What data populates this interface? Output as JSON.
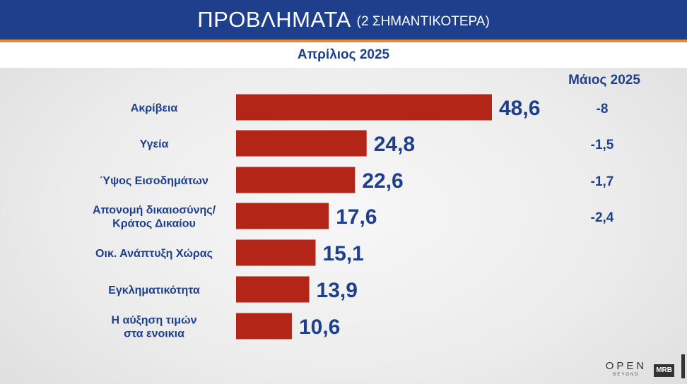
{
  "header": {
    "title": "ΠΡΟΒΛΗΜΑΤΑ",
    "subtitle": "(2 ΣΗΜΑΝΤΙΚΟΤΕΡΑ)",
    "period": "Απρίλιος 2025",
    "compare_label": "Μάιος 2025"
  },
  "logos": {
    "open": "OPEN",
    "open_sub": "BEYOND",
    "mrb": "MRB"
  },
  "colors": {
    "bar": "#b22517",
    "text": "#1d3f8c",
    "header_bg": "#1d3f8c",
    "accent": "#e8893a"
  },
  "chart_data": {
    "type": "bar",
    "orientation": "horizontal",
    "categories": [
      [
        "Ακρίβεια"
      ],
      [
        "Υγεία"
      ],
      [
        "Ύψος Εισοδημάτων"
      ],
      [
        "Απονομή δικαιοσύνης/",
        "Κράτος Δικαίου"
      ],
      [
        "Οικ. Ανάπτυξη Χώρας"
      ],
      [
        "Εγκληματικότητα"
      ],
      [
        "Η αύξηση τιμών",
        "στα ενοικια"
      ]
    ],
    "values": [
      48.6,
      24.8,
      22.6,
      17.6,
      15.1,
      13.9,
      10.6
    ],
    "value_labels": [
      "48,6",
      "24,8",
      "22,6",
      "17,6",
      "15,1",
      "13,9",
      "10,6"
    ],
    "changes": [
      "-8",
      "-1,5",
      "-1,7",
      "-2,4",
      "",
      "",
      ""
    ],
    "changes_header": "Μάιος 2025",
    "series_label": "Απρίλιος 2025"
  }
}
